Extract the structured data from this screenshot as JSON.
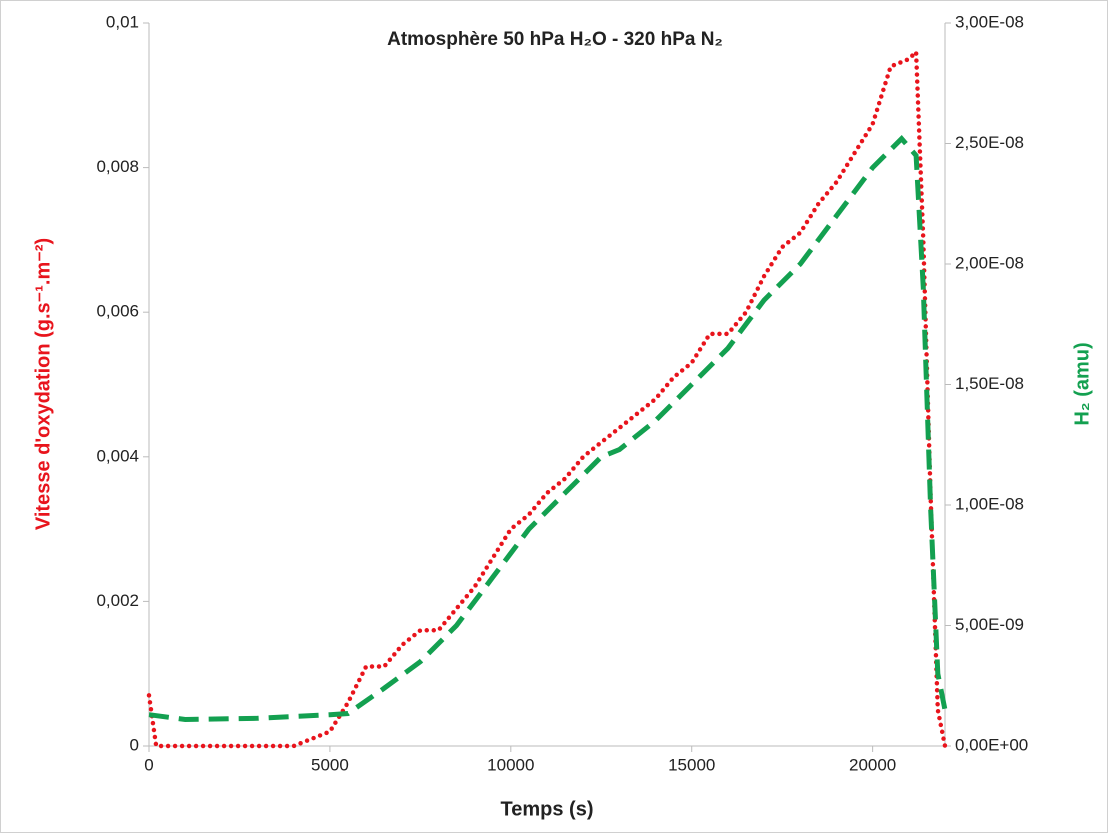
{
  "chart_data": {
    "type": "line",
    "title": "Atmosphère 50 hPa H₂O - 320 hPa N₂",
    "x_label": "Temps (s)",
    "y_label": "Vitesse d'oxydation (g.s⁻¹.m⁻²)",
    "y2_label": "H₂ (amu)",
    "xlim": [
      0,
      22000
    ],
    "xticks": [
      0,
      5000,
      10000,
      15000,
      20000
    ],
    "ylim": [
      0,
      0.01
    ],
    "yticks": [
      0,
      {
        "value": 0.002,
        "label": "0,002"
      },
      {
        "value": 0.004,
        "label": "0,004"
      },
      {
        "value": 0.006,
        "label": "0,006"
      },
      {
        "value": 0.008,
        "label": "0,008"
      },
      {
        "value": 0.01,
        "label": "0,01"
      }
    ],
    "y2lim": [
      0,
      3e-08
    ],
    "y2ticks": [
      {
        "value": 0,
        "label": "0,00E+00"
      },
      {
        "value": 5e-09,
        "label": "5,00E-09"
      },
      {
        "value": 1e-08,
        "label": "1,00E-08"
      },
      {
        "value": 1.5e-08,
        "label": "1,50E-08"
      },
      {
        "value": 2e-08,
        "label": "2,00E-08"
      },
      {
        "value": 2.5e-08,
        "label": "2,50E-08"
      },
      {
        "value": 3e-08,
        "label": "3,00E-08"
      }
    ],
    "y_label_color": "#e8141c",
    "y2_label_color": "#13a050",
    "series": [
      {
        "color": "#e8141c",
        "style": "dotted",
        "axis": "y",
        "x": [
          0,
          200,
          1000,
          2000,
          3000,
          4000,
          4500,
          5000,
          5500,
          6000,
          6500,
          7000,
          7500,
          8000,
          8500,
          9000,
          9500,
          10000,
          10500,
          11000,
          11500,
          12000,
          12500,
          13000,
          13500,
          14000,
          14500,
          15000,
          15500,
          16000,
          16500,
          17000,
          17500,
          18000,
          18500,
          19000,
          19500,
          20000,
          20500,
          21000,
          21200,
          21400,
          21600,
          21800,
          22000
        ],
        "values": [
          0.0007,
          0,
          0,
          0,
          0,
          0,
          0.0001,
          0.0002,
          0.0006,
          0.0011,
          0.0011,
          0.0014,
          0.0016,
          0.0016,
          0.0019,
          0.0022,
          0.0026,
          0.003,
          0.0032,
          0.0035,
          0.0037,
          0.004,
          0.0042,
          0.0044,
          0.0046,
          0.0048,
          0.0051,
          0.0053,
          0.0057,
          0.0057,
          0.006,
          0.0065,
          0.0069,
          0.0071,
          0.0075,
          0.0078,
          0.0082,
          0.0086,
          0.0094,
          0.0095,
          0.0096,
          0.007,
          0.0035,
          0.0005,
          0
        ]
      },
      {
        "color": "#13a050",
        "style": "dashed",
        "axis": "y2",
        "x": [
          0,
          1000,
          3000,
          5000,
          5500,
          6500,
          7500,
          8500,
          9500,
          10500,
          11500,
          12500,
          13000,
          14000,
          15000,
          16000,
          17000,
          18000,
          19000,
          20000,
          20800,
          21200,
          21400,
          21600,
          21800,
          22000
        ],
        "values": [
          1.3e-09,
          1.1e-09,
          1.15e-09,
          1.3e-09,
          1.35e-09,
          2.4e-09,
          3.5e-09,
          5e-09,
          7e-09,
          9e-09,
          1.05e-08,
          1.2e-08,
          1.23e-08,
          1.35e-08,
          1.5e-08,
          1.65e-08,
          1.85e-08,
          2e-08,
          2.2e-08,
          2.4e-08,
          2.52e-08,
          2.45e-08,
          1.9e-08,
          1e-08,
          3e-09,
          1.5e-09
        ]
      }
    ]
  }
}
